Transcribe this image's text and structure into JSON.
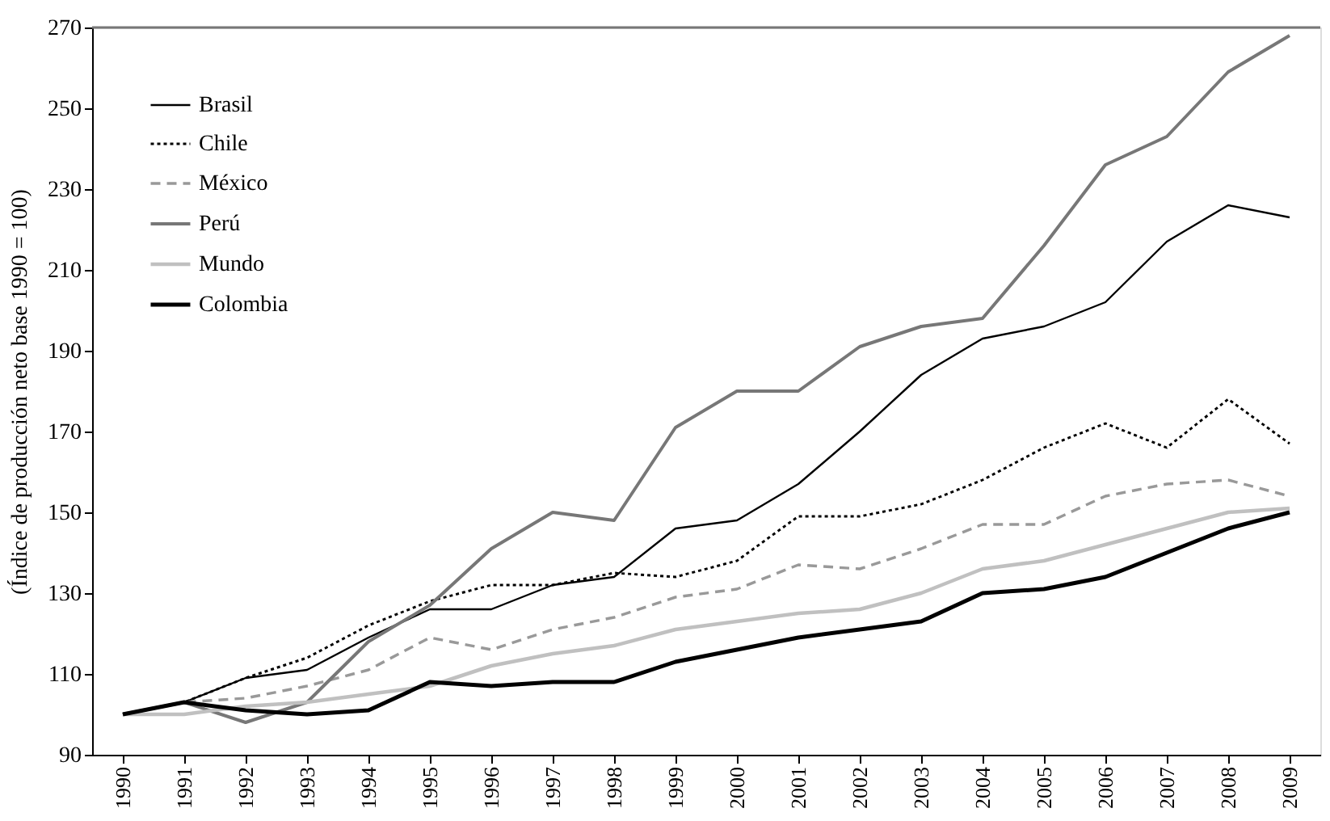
{
  "chart_data": {
    "type": "line",
    "ylabel": "(Índice de producción neto base  1990 = 100)",
    "categories": [
      "1990",
      "1991",
      "1992",
      "1993",
      "1994",
      "1995",
      "1996",
      "1997",
      "1998",
      "1999",
      "2000",
      "2001",
      "2002",
      "2003",
      "2004",
      "2005",
      "2006",
      "2007",
      "2008",
      "2009"
    ],
    "ylim": [
      90,
      270
    ],
    "yticks": [
      90,
      110,
      130,
      150,
      170,
      190,
      210,
      230,
      250,
      270
    ],
    "grid": false,
    "legend": "top left",
    "series": [
      {
        "name": "Brasil",
        "color": "#000000",
        "line_style": "solid",
        "values": [
          100,
          103,
          109,
          111,
          119,
          126,
          126,
          132,
          134,
          146,
          148,
          157,
          170,
          184,
          193,
          196,
          202,
          217,
          226,
          223
        ]
      },
      {
        "name": "Chile",
        "color": "#000000",
        "line_style": "dotted",
        "values": [
          100,
          103,
          109,
          114,
          122,
          128,
          132,
          132,
          135,
          134,
          138,
          149,
          149,
          152,
          158,
          166,
          172,
          166,
          178,
          167
        ]
      },
      {
        "name": "México",
        "color": "#999999",
        "line_style": "dashed",
        "values": [
          100,
          103,
          104,
          107,
          111,
          119,
          116,
          121,
          124,
          129,
          131,
          137,
          136,
          141,
          147,
          147,
          154,
          157,
          158,
          154
        ]
      },
      {
        "name": "Perú",
        "color": "#777777",
        "line_style": "solid",
        "values": [
          100,
          103,
          98,
          103,
          118,
          127,
          141,
          150,
          148,
          171,
          180,
          180,
          191,
          196,
          198,
          216,
          236,
          243,
          259,
          268
        ]
      },
      {
        "name": "Mundo",
        "color": "#c0c0c0",
        "line_style": "solid",
        "values": [
          100,
          100,
          102,
          103,
          105,
          107,
          112,
          115,
          117,
          121,
          123,
          125,
          126,
          130,
          136,
          138,
          142,
          146,
          150,
          151
        ]
      },
      {
        "name": "Colombia",
        "color": "#000000",
        "line_style": "solid",
        "values": [
          100,
          103,
          101,
          100,
          101,
          108,
          107,
          108,
          108,
          113,
          116,
          119,
          121,
          123,
          130,
          131,
          134,
          140,
          146,
          150
        ]
      }
    ]
  }
}
